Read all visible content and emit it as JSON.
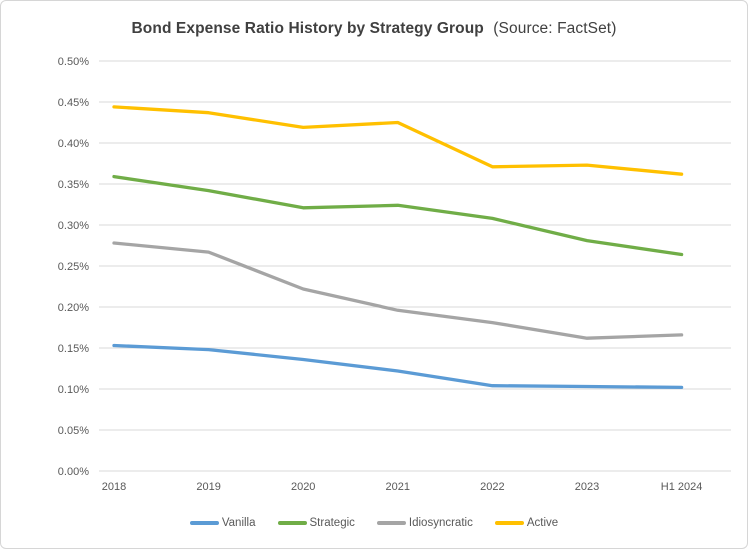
{
  "chart_data": {
    "type": "line",
    "title": "Bond Expense Ratio History by Strategy Group",
    "subtitle": "(Source: FactSet)",
    "categories": [
      "2018",
      "2019",
      "2020",
      "2021",
      "2022",
      "2023",
      "H1 2024"
    ],
    "series": [
      {
        "name": "Vanilla",
        "color": "#5B9BD5",
        "values": [
          0.153,
          0.148,
          0.136,
          0.122,
          0.104,
          0.103,
          0.102
        ]
      },
      {
        "name": "Strategic",
        "color": "#70AD47",
        "values": [
          0.359,
          0.342,
          0.321,
          0.324,
          0.308,
          0.281,
          0.264
        ]
      },
      {
        "name": "Idiosyncratic",
        "color": "#A5A5A5",
        "values": [
          0.278,
          0.267,
          0.222,
          0.196,
          0.181,
          0.162,
          0.166
        ]
      },
      {
        "name": "Active",
        "color": "#FFC000",
        "values": [
          0.444,
          0.437,
          0.419,
          0.425,
          0.371,
          0.373,
          0.362
        ]
      }
    ],
    "ylabel": "",
    "xlabel": "",
    "ylim": [
      0,
      0.5
    ],
    "ytick_step": 0.05,
    "ytick_labels": [
      "0.00%",
      "0.05%",
      "0.10%",
      "0.15%",
      "0.20%",
      "0.25%",
      "0.30%",
      "0.35%",
      "0.40%",
      "0.45%",
      "0.50%"
    ],
    "grid": true,
    "legend_position": "bottom",
    "colors": {
      "grid": "#D9D9D9",
      "axis_text": "#595959",
      "title_text": "#404040",
      "border": "#D6D6D6",
      "background": "#FFFFFF"
    }
  }
}
